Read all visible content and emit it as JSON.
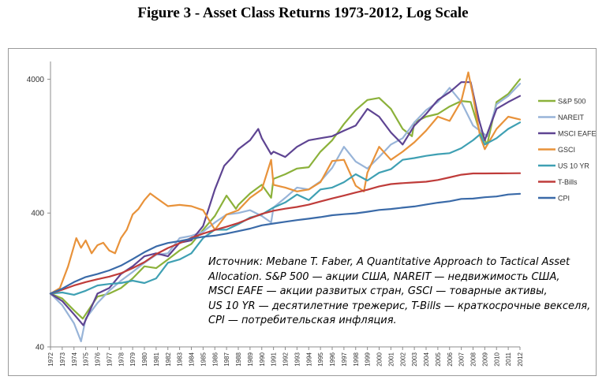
{
  "title": "Figure 3 - Asset Class Returns 1973-2012, Log Scale",
  "note": {
    "lines": [
      "Источник: Mebane T. Faber, A Quantitative Approach to Tactical Asset",
      " Allocation. S&P 500 — акции США, NAREIT — недвижимость США,",
      "MSCI EAFE — акции развитых стран, GSCI — товарные активы,",
      "US 10 YR — десятилетние трежерис, T-Bills — краткосрочные векселя,",
      "CPI — потребительская инфляция."
    ]
  },
  "chart_data": {
    "type": "line",
    "title": "Figure 3 - Asset Class Returns 1973-2012, Log Scale",
    "yscale": "log",
    "ylim": [
      40,
      5000
    ],
    "yticks": [
      40,
      400,
      4000
    ],
    "xlim": [
      1972,
      2012
    ],
    "xticks": [
      1972,
      1973,
      1974,
      1975,
      1976,
      1977,
      1978,
      1979,
      1980,
      1981,
      1982,
      1983,
      1984,
      1985,
      1986,
      1987,
      1988,
      1989,
      1990,
      1991,
      1992,
      1993,
      1994,
      1995,
      1996,
      1997,
      1998,
      1999,
      2000,
      2001,
      2002,
      2003,
      2004,
      2005,
      2006,
      2007,
      2008,
      2009,
      2010,
      2011,
      2012
    ],
    "grid": false,
    "legend": "right",
    "series": [
      {
        "name": "S&P 500",
        "color": "#8bb13a",
        "x": [
          1972,
          1973,
          1974,
          1974.75,
          1976,
          1977,
          1978,
          1979,
          1980,
          1981,
          1982,
          1983,
          1984,
          1985,
          1986,
          1987,
          1987.8,
          1988,
          1989,
          1990,
          1990.8,
          1991,
          1992,
          1993,
          1994,
          1995,
          1996,
          1997,
          1998,
          1999,
          2000,
          2001,
          2002,
          2002.8,
          2003,
          2004,
          2005,
          2006,
          2007,
          2007.8,
          2008.5,
          2009.2,
          2010,
          2011,
          2012
        ],
        "y": [
          100,
          92,
          75,
          65,
          95,
          100,
          110,
          130,
          160,
          155,
          180,
          210,
          235,
          300,
          380,
          540,
          430,
          460,
          560,
          650,
          520,
          720,
          780,
          860,
          880,
          1150,
          1400,
          1850,
          2350,
          2800,
          2900,
          2400,
          1700,
          1500,
          1900,
          2100,
          2200,
          2500,
          2750,
          2700,
          1700,
          1300,
          2700,
          3100,
          4000
        ]
      },
      {
        "name": "NAREIT",
        "color": "#98b4d8",
        "x": [
          1972,
          1973,
          1974,
          1974.6,
          1975,
          1976,
          1977,
          1978,
          1979,
          1980,
          1981,
          1982,
          1983,
          1984,
          1985,
          1986,
          1987,
          1988,
          1989,
          1990,
          1990.8,
          1991,
          1992,
          1993,
          1994,
          1995,
          1996,
          1997,
          1998,
          1999,
          2000,
          2001,
          2002,
          2003,
          2004,
          2005,
          2006,
          2007,
          2008,
          2009.2,
          2010,
          2011,
          2012
        ],
        "y": [
          100,
          82,
          60,
          44,
          65,
          85,
          105,
          125,
          145,
          170,
          195,
          200,
          260,
          270,
          290,
          340,
          390,
          400,
          420,
          380,
          340,
          440,
          520,
          620,
          600,
          690,
          870,
          1250,
          970,
          860,
          1050,
          1300,
          1450,
          1900,
          2350,
          2700,
          3450,
          2700,
          1800,
          1500,
          2600,
          3000,
          3700
        ]
      },
      {
        "name": "MSCI EAFE",
        "color": "#5e4492",
        "x": [
          1972,
          1973,
          1974,
          1974.8,
          1976,
          1977,
          1978,
          1979,
          1980,
          1981,
          1982,
          1983,
          1984,
          1985,
          1986,
          1986.8,
          1987.5,
          1988,
          1989,
          1989.7,
          1990,
          1990.8,
          1991,
          1992,
          1993,
          1994,
          1995,
          1996,
          1997,
          1998,
          1999,
          2000,
          2001,
          2002,
          2003,
          2004,
          2005,
          2006,
          2007,
          2007.8,
          2008.5,
          2009,
          2010,
          2011,
          2012
        ],
        "y": [
          100,
          88,
          70,
          58,
          100,
          110,
          140,
          160,
          190,
          200,
          190,
          240,
          250,
          320,
          600,
          900,
          1050,
          1200,
          1400,
          1700,
          1450,
          1100,
          1150,
          1050,
          1250,
          1400,
          1450,
          1500,
          1650,
          1800,
          2400,
          2100,
          1600,
          1300,
          1800,
          2200,
          2800,
          3200,
          3800,
          3800,
          2000,
          1400,
          2400,
          2700,
          3000
        ]
      },
      {
        "name": "GSCI",
        "color": "#e8923a",
        "x": [
          1972,
          1972.8,
          1973.5,
          1974.2,
          1974.6,
          1975,
          1975.5,
          1976,
          1976.5,
          1977,
          1977.5,
          1978,
          1978.5,
          1979,
          1979.5,
          1980,
          1980.5,
          1981,
          1982,
          1983,
          1984,
          1985,
          1986,
          1987,
          1988,
          1989,
          1990,
          1990.8,
          1991,
          1992,
          1993,
          1994,
          1995,
          1996,
          1997,
          1998,
          1998.7,
          1999,
          2000,
          2001,
          2002,
          2003,
          2004,
          2005,
          2006,
          2007,
          2007.6,
          2008,
          2008.6,
          2009,
          2010,
          2011,
          2012
        ],
        "y": [
          100,
          110,
          160,
          260,
          220,
          250,
          200,
          230,
          240,
          210,
          200,
          260,
          300,
          390,
          430,
          500,
          560,
          520,
          450,
          460,
          450,
          420,
          300,
          390,
          420,
          520,
          600,
          1000,
          650,
          620,
          580,
          600,
          680,
          980,
          1000,
          640,
          580,
          800,
          1250,
          1000,
          1150,
          1350,
          1650,
          2100,
          1950,
          2750,
          4500,
          3000,
          1500,
          1200,
          1700,
          2100,
          2000
        ]
      },
      {
        "name": "US 10 YR",
        "color": "#3fa0b3",
        "x": [
          1972,
          1973,
          1974,
          1975,
          1976,
          1977,
          1978,
          1979,
          1980,
          1981,
          1982,
          1983,
          1984,
          1985,
          1986,
          1987,
          1988,
          1989,
          1990,
          1991,
          1992,
          1993,
          1994,
          1995,
          1996,
          1997,
          1998,
          1999,
          2000,
          2001,
          2002,
          2003,
          2004,
          2005,
          2006,
          2007,
          2008,
          2008.6,
          2009,
          2010,
          2011,
          2012
        ],
        "y": [
          100,
          102,
          98,
          105,
          115,
          118,
          120,
          125,
          120,
          130,
          170,
          180,
          200,
          260,
          300,
          300,
          330,
          370,
          390,
          440,
          480,
          550,
          500,
          600,
          620,
          680,
          780,
          700,
          800,
          850,
          1000,
          1030,
          1070,
          1100,
          1120,
          1220,
          1400,
          1550,
          1300,
          1450,
          1700,
          1900
        ]
      },
      {
        "name": "T-Bills",
        "color": "#bf3c3a",
        "x": [
          1972,
          1973,
          1974,
          1975,
          1976,
          1977,
          1978,
          1979,
          1980,
          1981,
          1982,
          1983,
          1984,
          1985,
          1986,
          1987,
          1988,
          1989,
          1990,
          1991,
          1992,
          1993,
          1994,
          1995,
          1996,
          1997,
          1998,
          1999,
          2000,
          2001,
          2002,
          2003,
          2004,
          2005,
          2006,
          2007,
          2008,
          2009,
          2010,
          2011,
          2012
        ],
        "y": [
          100,
          107,
          115,
          122,
          128,
          134,
          142,
          155,
          172,
          197,
          219,
          238,
          261,
          281,
          299,
          316,
          337,
          365,
          394,
          416,
          431,
          444,
          462,
          488,
          514,
          540,
          569,
          597,
          633,
          658,
          669,
          677,
          686,
          706,
          739,
          774,
          790,
          791,
          792,
          793,
          794
        ]
      },
      {
        "name": "CPI",
        "color": "#3a6aa8",
        "x": [
          1972,
          1973,
          1974,
          1975,
          1976,
          1977,
          1978,
          1979,
          1980,
          1981,
          1982,
          1983,
          1984,
          1985,
          1986,
          1987,
          1988,
          1989,
          1990,
          1991,
          1992,
          1993,
          1994,
          1995,
          1996,
          1997,
          1998,
          1999,
          2000,
          2001,
          2002,
          2003,
          2004,
          2005,
          2006,
          2007,
          2008,
          2009,
          2010,
          2011,
          2012
        ],
        "y": [
          100,
          109,
          122,
          133,
          140,
          149,
          162,
          181,
          204,
          225,
          239,
          247,
          257,
          266,
          271,
          281,
          293,
          306,
          324,
          334,
          344,
          354,
          363,
          373,
          385,
          392,
          398,
          409,
          422,
          429,
          439,
          448,
          463,
          478,
          490,
          510,
          513,
          525,
          532,
          550,
          557
        ]
      }
    ]
  }
}
